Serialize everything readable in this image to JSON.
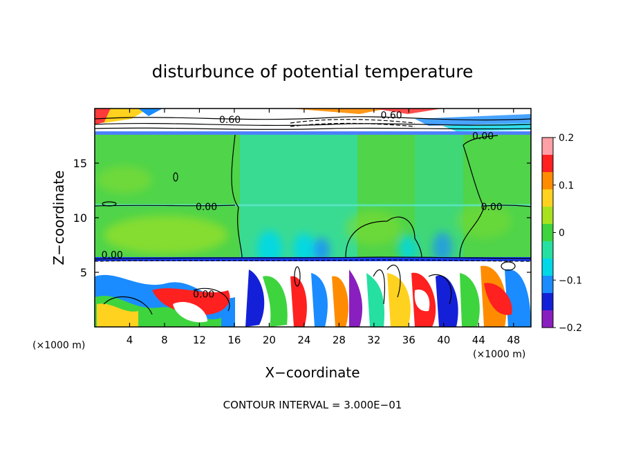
{
  "chart_data": {
    "type": "heatmap",
    "title": "disturbunce of potential temperature",
    "xlabel": "X−coordinate",
    "ylabel": "Z−coordinate",
    "x_unit_left": "(×1000 m)",
    "x_unit_right": "(×1000 m)",
    "x_ticks": [
      "4",
      "8",
      "12",
      "16",
      "20",
      "24",
      "28",
      "32",
      "36",
      "40",
      "44",
      "48"
    ],
    "y_ticks": [
      "5",
      "10",
      "15"
    ],
    "xlim": [
      0,
      50
    ],
    "ylim": [
      0,
      20
    ],
    "colorbar": {
      "range": [
        -0.2,
        0.2
      ],
      "tick_labels": [
        "0.2",
        "0.1",
        "0",
        "−0.1",
        "−0.2"
      ],
      "tick_values": [
        0.2,
        0.1,
        0,
        -0.1,
        -0.2
      ],
      "colors": [
        "#ff9fa6",
        "#ff2020",
        "#ff8c00",
        "#ffd21f",
        "#a8e21f",
        "#3ed43e",
        "#25e0a0",
        "#00d8e8",
        "#1a8cff",
        "#1420d8",
        "#8a1fbf"
      ]
    },
    "contour_labels": [
      {
        "text": "0.60",
        "x": 15.5,
        "z": 19.0
      },
      {
        "text": "0.60",
        "x": 34.0,
        "z": 19.4
      },
      {
        "text": "0.00",
        "x": 44.5,
        "z": 17.5
      },
      {
        "text": "0.00",
        "x": 12.8,
        "z": 11.0
      },
      {
        "text": "0.00",
        "x": 45.5,
        "z": 11.0
      },
      {
        "text": "0.00",
        "x": 2.0,
        "z": 6.6
      },
      {
        "text": "0.00",
        "x": 12.5,
        "z": 3.0
      }
    ],
    "contour_interval": "CONTOUR INTERVAL = 3.000E−01"
  }
}
